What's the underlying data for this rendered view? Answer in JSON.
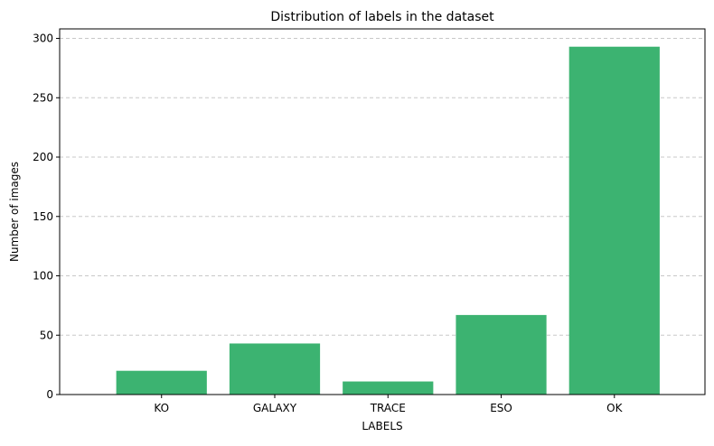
{
  "chart_data": {
    "type": "bar",
    "title": "Distribution of labels in the dataset",
    "xlabel": "LABELS",
    "ylabel": "Number of images",
    "categories": [
      "KO",
      "GALAXY",
      "TRACE",
      "ESO",
      "OK"
    ],
    "values": [
      20,
      43,
      11,
      67,
      293
    ],
    "ylim": [
      0,
      308
    ],
    "yticks": [
      0,
      50,
      100,
      150,
      200,
      250,
      300
    ],
    "ytick_labels": [
      "0",
      "50",
      "100",
      "150",
      "200",
      "250",
      "300"
    ],
    "grid": "y-dashed",
    "legend": "none",
    "bar_color": "#3cb371",
    "grid_color": "#c8c8c8"
  }
}
